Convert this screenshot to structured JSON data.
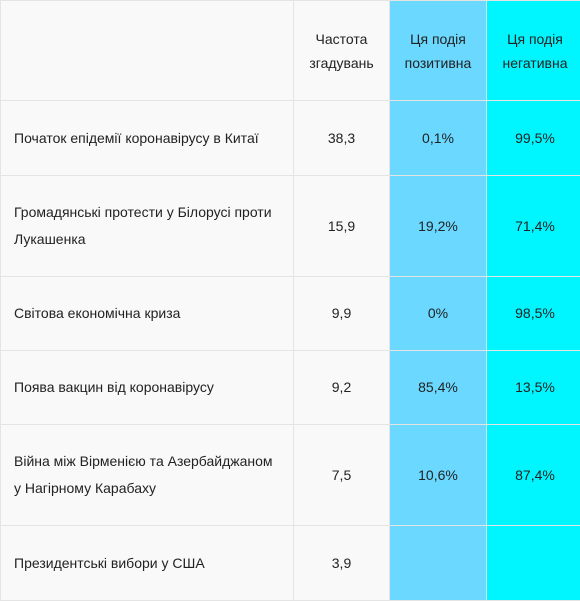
{
  "header": {
    "event": "",
    "frequency": "Частота згадувань",
    "positive": "Ця подія позитивна",
    "negative": "Ця подія негативна"
  },
  "rows": [
    {
      "event": "Початок епідемії коронавірусу в Китаї",
      "frequency": "38,3",
      "positive": "0,1%",
      "negative": "99,5%"
    },
    {
      "event": "Громадянські протести у Білорусі проти Лукашенка",
      "frequency": "15,9",
      "positive": "19,2%",
      "negative": "71,4%"
    },
    {
      "event": "Світова економічна криза",
      "frequency": "9,9",
      "positive": "0%",
      "negative": "98,5%"
    },
    {
      "event": "Поява вакцин від коронавірусу",
      "frequency": "9,2",
      "positive": "85,4%",
      "negative": "13,5%"
    },
    {
      "event": "Війна між Вірменією та Азербайджаном у Нагірному Карабаху",
      "frequency": "7,5",
      "positive": "10,6%",
      "negative": "87,4%"
    },
    {
      "event": "Президентські вибори у США",
      "frequency": "3,9",
      "positive": "",
      "negative": ""
    }
  ],
  "colors": {
    "positive_column": "#6ad8ff",
    "negative_column": "#00f6ff",
    "neutral_column": "#f9f9f9"
  }
}
